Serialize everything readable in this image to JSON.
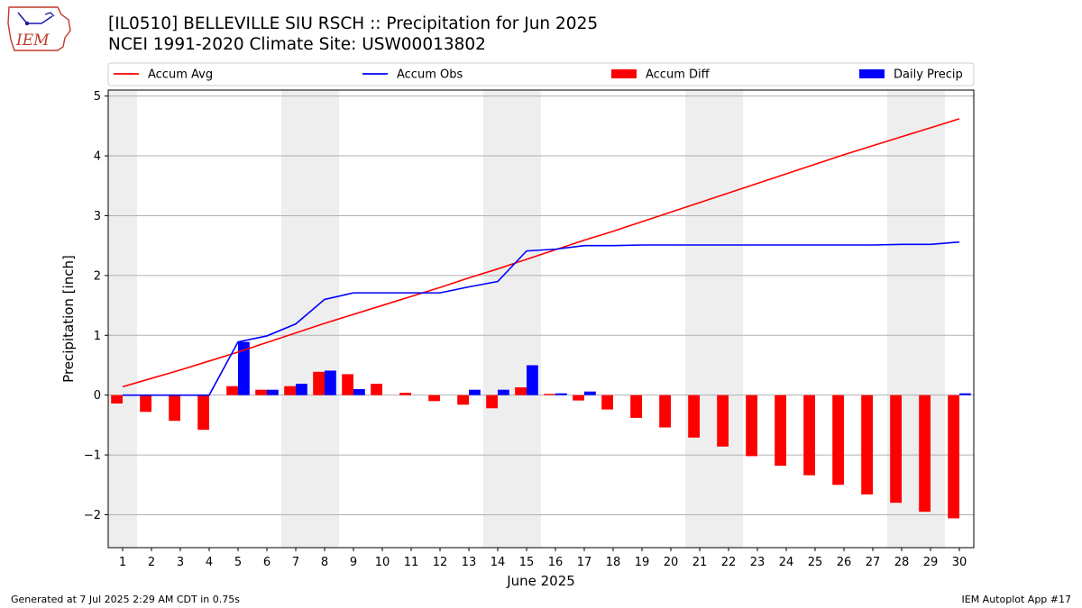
{
  "header": {
    "title_line1": "[IL0510] BELLEVILLE SIU RSCH :: Precipitation for Jun 2025",
    "title_line2": "NCEI 1991-2020 Climate Site: USW00013802"
  },
  "logo": {
    "text": "IEM"
  },
  "footer": {
    "generated": "Generated at 7 Jul 2025 2:29 AM CDT in 0.75s",
    "app": "IEM Autoplot App #17"
  },
  "colors": {
    "accum_avg": "#ff0000",
    "accum_obs": "#0000ff",
    "accum_diff": "#ff0000",
    "daily_precip": "#0000ff",
    "weekend_band": "#eeeeee",
    "grid": "#b0b0b0"
  },
  "chart_data": {
    "type": "bar",
    "xlabel": "June 2025",
    "ylabel": "Precipitation [inch]",
    "ylim": [
      -2.55,
      5.1
    ],
    "yticks": [
      -2,
      -1,
      0,
      1,
      2,
      3,
      4,
      5
    ],
    "ytick_labels": [
      "−2",
      "−1",
      "0",
      "1",
      "2",
      "3",
      "4",
      "5"
    ],
    "grid": "horizontal",
    "legend_position": "top",
    "days": [
      1,
      2,
      3,
      4,
      5,
      6,
      7,
      8,
      9,
      10,
      11,
      12,
      13,
      14,
      15,
      16,
      17,
      18,
      19,
      20,
      21,
      22,
      23,
      24,
      25,
      26,
      27,
      28,
      29,
      30
    ],
    "weekend_days": [
      1,
      7,
      8,
      14,
      15,
      21,
      22,
      28,
      29
    ],
    "series": [
      {
        "name": "Accum Avg",
        "kind": "line",
        "color": "#ff0000",
        "values": [
          0.14,
          0.28,
          0.42,
          0.57,
          0.72,
          0.88,
          1.04,
          1.2,
          1.35,
          1.5,
          1.65,
          1.8,
          1.96,
          2.11,
          2.27,
          2.43,
          2.59,
          2.74,
          2.9,
          3.06,
          3.22,
          3.38,
          3.54,
          3.7,
          3.86,
          4.02,
          4.17,
          4.32,
          4.47,
          4.62
        ]
      },
      {
        "name": "Accum Obs",
        "kind": "line",
        "color": "#0000ff",
        "values": [
          0,
          0,
          0,
          0,
          0.89,
          0.99,
          1.19,
          1.6,
          1.71,
          1.71,
          1.71,
          1.71,
          1.81,
          1.9,
          2.41,
          2.44,
          2.5,
          2.5,
          2.51,
          2.51,
          2.51,
          2.51,
          2.51,
          2.51,
          2.51,
          2.51,
          2.51,
          2.52,
          2.52,
          2.56
        ]
      },
      {
        "name": "Accum Diff",
        "kind": "bar",
        "color": "#ff0000",
        "values": [
          -0.14,
          -0.28,
          -0.43,
          -0.58,
          0.15,
          0.09,
          0.15,
          0.39,
          0.35,
          0.19,
          0.04,
          -0.1,
          -0.16,
          -0.22,
          0.13,
          0.02,
          -0.09,
          -0.24,
          -0.38,
          -0.54,
          -0.71,
          -0.86,
          -1.02,
          -1.18,
          -1.34,
          -1.5,
          -1.66,
          -1.8,
          -1.95,
          -2.06
        ]
      },
      {
        "name": "Daily Precip",
        "kind": "bar",
        "color": "#0000ff",
        "values": [
          0,
          0,
          0,
          0,
          0.89,
          0.09,
          0.19,
          0.41,
          0.1,
          0,
          0,
          0,
          0.09,
          0.09,
          0.5,
          0.03,
          0.06,
          0,
          0,
          0,
          0,
          0,
          0,
          0,
          0,
          0,
          0,
          0,
          0,
          0.03
        ]
      }
    ]
  }
}
